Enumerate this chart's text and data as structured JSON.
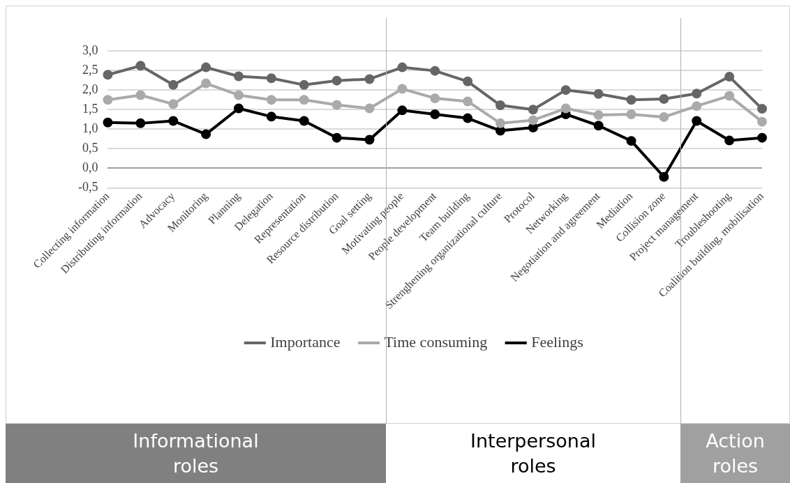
{
  "chart_data": {
    "type": "line",
    "categories": [
      "Collecting information",
      "Distributing information",
      "Advocacy",
      "Monitoring",
      "Planning",
      "Delegation",
      "Representation",
      "Resource distribution",
      "Goal setting",
      "Motivating people",
      "People development",
      "Team building",
      "Strenghening organizational culture",
      "Protocol",
      "Networking",
      "Negotiation and agreement",
      "Mediation",
      "Collision zone",
      "Project management",
      "Troubleshooting",
      "Coalition building, mobilisation"
    ],
    "series": [
      {
        "name": "Importance",
        "color": "#666666",
        "values": [
          2.39,
          2.62,
          2.13,
          2.58,
          2.35,
          2.3,
          2.13,
          2.24,
          2.28,
          2.58,
          2.49,
          2.22,
          1.61,
          1.5,
          2.0,
          1.9,
          1.75,
          1.77,
          1.91,
          2.34,
          1.52
        ]
      },
      {
        "name": "Time consuming",
        "color": "#aaaaaa",
        "values": [
          1.75,
          1.87,
          1.64,
          2.17,
          1.87,
          1.75,
          1.75,
          1.62,
          1.53,
          2.03,
          1.79,
          1.71,
          1.15,
          1.23,
          1.53,
          1.36,
          1.38,
          1.31,
          1.59,
          1.85,
          1.19
        ]
      },
      {
        "name": "Feelings",
        "color": "#000000",
        "values": [
          1.17,
          1.15,
          1.21,
          0.87,
          1.53,
          1.32,
          1.21,
          0.78,
          0.73,
          1.48,
          1.38,
          1.28,
          0.96,
          1.04,
          1.38,
          1.09,
          0.7,
          -0.22,
          1.21,
          0.71,
          0.78
        ]
      }
    ],
    "ylim": [
      -0.5,
      3
    ],
    "yticks": [
      {
        "value": -0.5,
        "label": "-0,5"
      },
      {
        "value": 0,
        "label": "0,0"
      },
      {
        "value": 0.5,
        "label": "0,5"
      },
      {
        "value": 1,
        "label": "1,0"
      },
      {
        "value": 1.5,
        "label": "1,5"
      },
      {
        "value": 2,
        "label": "2,0"
      },
      {
        "value": 2.5,
        "label": "2,5"
      },
      {
        "value": 3,
        "label": "3,0"
      }
    ],
    "grid": "y",
    "legend": "bottom",
    "marker": "circle",
    "line_style": "solid",
    "annotations": [
      "Informational roles",
      "Interpersonal roles",
      "Action roles"
    ]
  }
}
